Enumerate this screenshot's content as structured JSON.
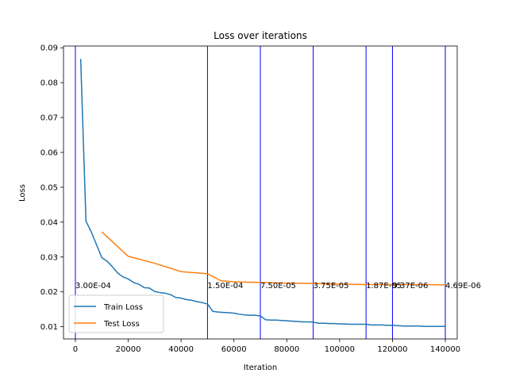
{
  "chart_data": {
    "type": "line",
    "title": "Loss over iterations",
    "xlabel": "Iteration",
    "ylabel": "Loss",
    "xlim": [
      -4500,
      144500
    ],
    "ylim": [
      0.0065,
      0.0905
    ],
    "x_ticks": [
      0,
      20000,
      40000,
      60000,
      80000,
      100000,
      120000,
      140000
    ],
    "x_tick_labels": [
      "0",
      "20000",
      "40000",
      "60000",
      "80000",
      "100000",
      "120000",
      "140000"
    ],
    "y_ticks": [
      0.01,
      0.02,
      0.03,
      0.04,
      0.05,
      0.06,
      0.07,
      0.08,
      0.09
    ],
    "y_tick_labels": [
      "0.01",
      "0.02",
      "0.03",
      "0.04",
      "0.05",
      "0.06",
      "0.07",
      "0.08",
      "0.09"
    ],
    "legend_position": "lower-left",
    "grid": false,
    "series": [
      {
        "name": "Train Loss",
        "color": "#1f77b4",
        "x": [
          2000,
          4000,
          6000,
          8000,
          10000,
          12000,
          14000,
          16000,
          18000,
          20000,
          22000,
          24000,
          26000,
          28000,
          30000,
          32000,
          34000,
          36000,
          38000,
          40000,
          42000,
          44000,
          46000,
          48000,
          50000,
          52000,
          54000,
          56000,
          58000,
          60000,
          62000,
          64000,
          66000,
          68000,
          70000,
          72000,
          74000,
          76000,
          78000,
          80000,
          82000,
          84000,
          86000,
          88000,
          90000,
          92000,
          94000,
          96000,
          98000,
          100000,
          102000,
          104000,
          106000,
          108000,
          110000,
          112000,
          114000,
          116000,
          118000,
          120000,
          122000,
          124000,
          126000,
          128000,
          130000,
          132000,
          134000,
          136000,
          138000,
          140000
        ],
        "y": [
          0.0868,
          0.0403,
          0.0372,
          0.0335,
          0.0298,
          0.0288,
          0.0272,
          0.0254,
          0.0243,
          0.0237,
          0.0227,
          0.0222,
          0.0212,
          0.0211,
          0.0201,
          0.0198,
          0.0196,
          0.0192,
          0.0184,
          0.0182,
          0.0178,
          0.0176,
          0.0172,
          0.0169,
          0.0165,
          0.0144,
          0.0142,
          0.0141,
          0.014,
          0.0139,
          0.0136,
          0.0134,
          0.0133,
          0.0133,
          0.0131,
          0.012,
          0.0119,
          0.0119,
          0.0118,
          0.0117,
          0.0116,
          0.0115,
          0.0114,
          0.0114,
          0.0113,
          0.011,
          0.011,
          0.0109,
          0.0109,
          0.0108,
          0.0108,
          0.0107,
          0.0107,
          0.0107,
          0.0107,
          0.0105,
          0.0105,
          0.0105,
          0.0104,
          0.0104,
          0.0103,
          0.0102,
          0.0102,
          0.0102,
          0.0102,
          0.0101,
          0.0101,
          0.0101,
          0.0101,
          0.0101
        ]
      },
      {
        "name": "Test Loss",
        "color": "#ff7f0e",
        "x": [
          10000,
          20000,
          30000,
          40000,
          50000,
          55000,
          60000,
          70000,
          80000,
          90000,
          100000,
          110000,
          120000,
          130000,
          140000
        ],
        "y": [
          0.0372,
          0.0302,
          0.0282,
          0.0258,
          0.0252,
          0.0232,
          0.0229,
          0.0227,
          0.0225,
          0.0224,
          0.0222,
          0.0221,
          0.0221,
          0.0221,
          0.022
        ]
      }
    ],
    "vertical_lines": {
      "color": "#0000ff",
      "x": [
        0,
        50000,
        70000,
        90000,
        110000,
        120000,
        140000
      ],
      "labels": [
        "3.00E-04",
        "1.50E-04",
        "7.50E-05",
        "3.75E-05",
        "1.87E-05",
        "9.37E-06",
        "4.69E-06"
      ],
      "label_y": 0.022
    }
  }
}
